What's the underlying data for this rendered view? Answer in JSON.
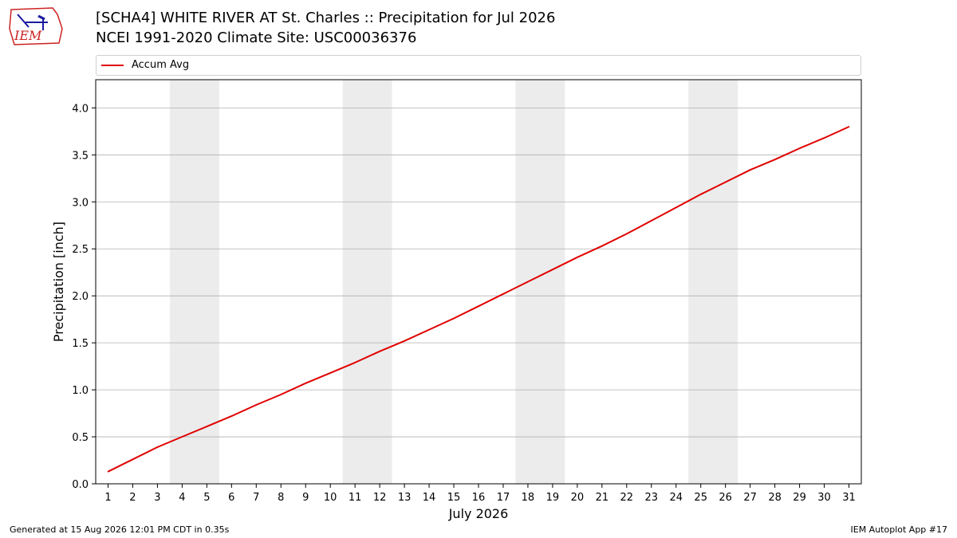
{
  "title_line1": "[SCHA4] WHITE RIVER  AT St. Charles :: Precipitation for Jul 2026",
  "title_line2": "NCEI 1991-2020 Climate Site: USC00036376",
  "logo_text": "IEM",
  "footer_left": "Generated at 15 Aug 2026 12:01 PM CDT in 0.35s",
  "footer_right": "IEM Autoplot App #17",
  "colors": {
    "series": "#e00000",
    "weekend_band": "#ececec",
    "grid": "#b0b0b0",
    "logo": "#cc2222"
  },
  "chart_data": {
    "type": "line",
    "xlabel": "July 2026",
    "ylabel": "Precipitation [inch]",
    "xlim": [
      0.5,
      31.5
    ],
    "ylim": [
      0,
      4.3
    ],
    "x_ticks": [
      1,
      2,
      3,
      4,
      5,
      6,
      7,
      8,
      9,
      10,
      11,
      12,
      13,
      14,
      15,
      16,
      17,
      18,
      19,
      20,
      21,
      22,
      23,
      24,
      25,
      26,
      27,
      28,
      29,
      30,
      31
    ],
    "y_ticks": [
      "0.0",
      "0.5",
      "1.0",
      "1.5",
      "2.0",
      "2.5",
      "3.0",
      "3.5",
      "4.0"
    ],
    "grid": "horizontal",
    "legend_position": "top",
    "shaded_day_ranges": [
      [
        3.5,
        5.5
      ],
      [
        10.5,
        12.5
      ],
      [
        17.5,
        19.5
      ],
      [
        24.5,
        26.5
      ]
    ],
    "series": [
      {
        "name": "Accum Avg",
        "x": [
          1,
          2,
          3,
          4,
          5,
          6,
          7,
          8,
          9,
          10,
          11,
          12,
          13,
          14,
          15,
          16,
          17,
          18,
          19,
          20,
          21,
          22,
          23,
          24,
          25,
          26,
          27,
          28,
          29,
          30,
          31
        ],
        "values": [
          0.13,
          0.26,
          0.39,
          0.5,
          0.61,
          0.72,
          0.84,
          0.95,
          1.07,
          1.18,
          1.29,
          1.41,
          1.52,
          1.64,
          1.76,
          1.89,
          2.02,
          2.15,
          2.28,
          2.41,
          2.53,
          2.66,
          2.8,
          2.94,
          3.08,
          3.21,
          3.34,
          3.45,
          3.57,
          3.68,
          3.8
        ]
      }
    ]
  }
}
